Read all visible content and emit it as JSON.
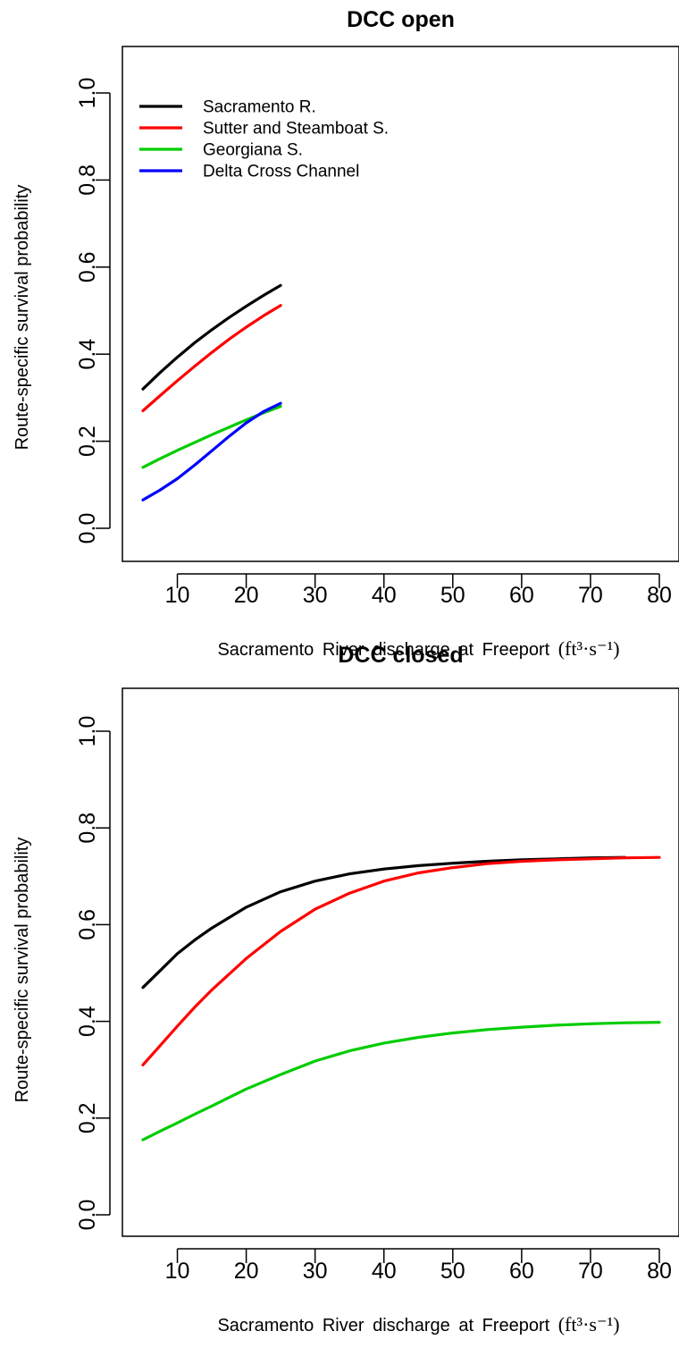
{
  "chart_data": [
    {
      "type": "line",
      "title": "DCC open",
      "xlabel": "Sacramento River discharge at Freeport",
      "xlabel_unit": "(ft³·s⁻¹)",
      "ylabel": "Route-specific survival probability",
      "xlim": [
        5,
        80
      ],
      "ylim": [
        0,
        1
      ],
      "xticks": [
        10,
        20,
        30,
        40,
        50,
        60,
        70,
        80
      ],
      "yticks": [
        0.0,
        0.2,
        0.4,
        0.6,
        0.8,
        1.0
      ],
      "ytick_labels": [
        "0.0",
        "0.2",
        "0.4",
        "0.6",
        "0.8",
        "1.0"
      ],
      "grid": false,
      "legend_position": "top-left",
      "series": [
        {
          "name": "Sacramento R.",
          "color": "#000000",
          "x": [
            5,
            7.5,
            10,
            12.5,
            15,
            17.5,
            20,
            22.5,
            25
          ],
          "y": [
            0.32,
            0.358,
            0.393,
            0.426,
            0.456,
            0.484,
            0.51,
            0.535,
            0.558
          ]
        },
        {
          "name": "Sutter and Steamboat S.",
          "color": "#ff0000",
          "x": [
            5,
            7.5,
            10,
            12.5,
            15,
            17.5,
            20,
            22.5,
            25
          ],
          "y": [
            0.27,
            0.305,
            0.339,
            0.372,
            0.404,
            0.434,
            0.462,
            0.488,
            0.512
          ]
        },
        {
          "name": "Georgiana S.",
          "color": "#00cc00",
          "x": [
            5,
            7.5,
            10,
            12.5,
            15,
            17.5,
            20,
            22.5,
            25
          ],
          "y": [
            0.14,
            0.16,
            0.179,
            0.197,
            0.215,
            0.232,
            0.249,
            0.265,
            0.28
          ]
        },
        {
          "name": "Delta Cross Channel",
          "color": "#0000ff",
          "x": [
            5,
            7.5,
            10,
            12.5,
            15,
            17.5,
            20,
            22.5,
            25
          ],
          "y": [
            0.065,
            0.088,
            0.114,
            0.145,
            0.178,
            0.211,
            0.242,
            0.268,
            0.287
          ]
        }
      ]
    },
    {
      "type": "line",
      "title": "DCC closed",
      "xlabel": "Sacramento River discharge at Freeport",
      "xlabel_unit": "(ft³·s⁻¹)",
      "ylabel": "Route-specific survival probability",
      "xlim": [
        5,
        80
      ],
      "ylim": [
        0,
        1
      ],
      "xticks": [
        10,
        20,
        30,
        40,
        50,
        60,
        70,
        80
      ],
      "yticks": [
        0.0,
        0.2,
        0.4,
        0.6,
        0.8,
        1.0
      ],
      "ytick_labels": [
        "0.0",
        "0.2",
        "0.4",
        "0.6",
        "0.8",
        "1.0"
      ],
      "grid": false,
      "series": [
        {
          "name": "Sacramento R.",
          "color": "#000000",
          "x": [
            5,
            7.5,
            10,
            12.5,
            15,
            20,
            25,
            30,
            35,
            40,
            45,
            50,
            55,
            60,
            65,
            70,
            75
          ],
          "y": [
            0.47,
            0.505,
            0.54,
            0.568,
            0.593,
            0.636,
            0.668,
            0.69,
            0.705,
            0.715,
            0.722,
            0.727,
            0.731,
            0.734,
            0.736,
            0.738,
            0.739
          ]
        },
        {
          "name": "Sutter and Steamboat S.",
          "color": "#ff0000",
          "x": [
            5,
            7.5,
            10,
            12.5,
            15,
            20,
            25,
            30,
            35,
            40,
            45,
            50,
            55,
            60,
            65,
            70,
            75,
            80
          ],
          "y": [
            0.31,
            0.35,
            0.39,
            0.429,
            0.465,
            0.53,
            0.586,
            0.632,
            0.665,
            0.69,
            0.707,
            0.718,
            0.726,
            0.731,
            0.734,
            0.736,
            0.738,
            0.739
          ]
        },
        {
          "name": "Georgiana S.",
          "color": "#00cc00",
          "x": [
            5,
            7.5,
            10,
            12.5,
            15,
            20,
            25,
            30,
            35,
            40,
            45,
            50,
            55,
            60,
            65,
            70,
            75,
            80
          ],
          "y": [
            0.155,
            0.173,
            0.19,
            0.208,
            0.225,
            0.26,
            0.29,
            0.318,
            0.339,
            0.355,
            0.367,
            0.376,
            0.383,
            0.388,
            0.392,
            0.395,
            0.397,
            0.398
          ]
        }
      ]
    }
  ]
}
